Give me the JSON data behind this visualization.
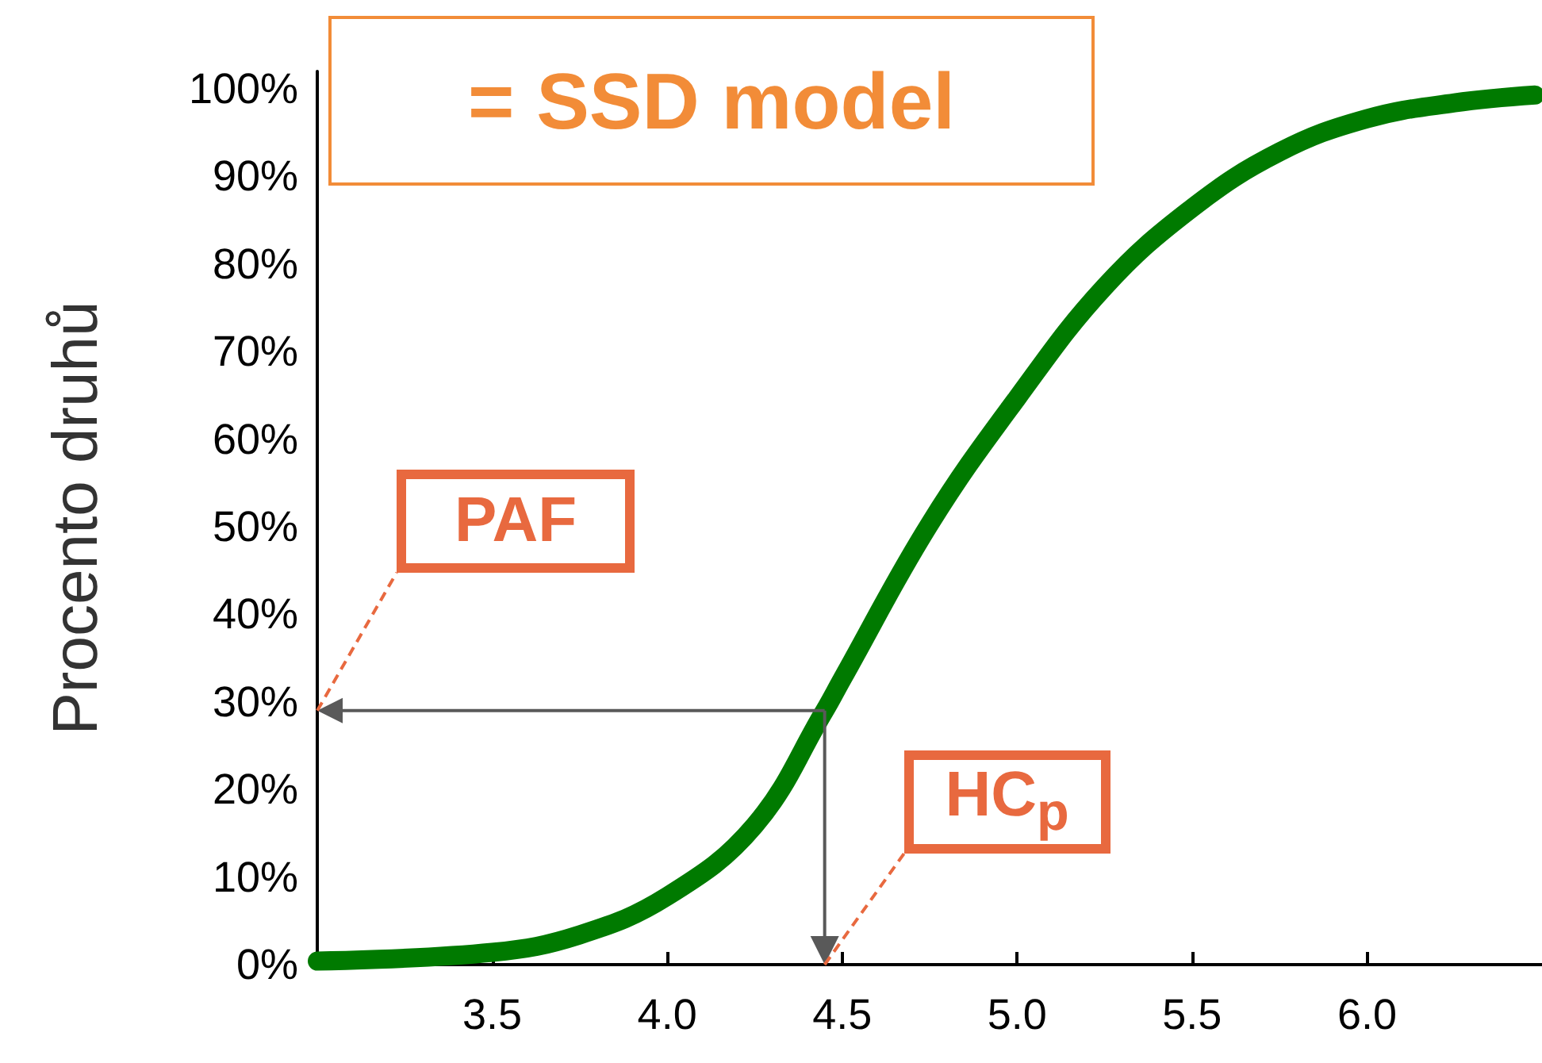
{
  "chart_data": {
    "type": "line",
    "title": "= SSD model",
    "ylabel": "Procento druhů",
    "x": [
      3.0,
      3.5,
      3.75,
      4.0,
      4.25,
      4.45,
      4.5,
      4.75,
      5.0,
      5.25,
      5.5,
      5.75,
      6.0,
      6.25,
      6.48
    ],
    "series": [
      {
        "color": "#007a00",
        "values": [
          0.4,
          1.4,
          3.4,
          7.8,
          15.9,
          29,
          32.6,
          50.3,
          64.7,
          77.4,
          86.4,
          92.8,
          96.6,
          98.4,
          99.3
        ]
      }
    ],
    "xlim": [
      3.0,
      6.5
    ],
    "xticks": [
      {
        "value": 3.5,
        "label": "3.5"
      },
      {
        "value": 4,
        "label": "4.0"
      },
      {
        "value": 4.5,
        "label": "4.5"
      },
      {
        "value": 5,
        "label": "5.0"
      },
      {
        "value": 5.5,
        "label": "5.5"
      },
      {
        "value": 6,
        "label": "6.0"
      }
    ],
    "ylim": [
      0,
      102
    ],
    "yticks": [
      {
        "value": 0,
        "label": "0%"
      },
      {
        "value": 10,
        "label": "10%"
      },
      {
        "value": 20,
        "label": "20%"
      },
      {
        "value": 30,
        "label": "30%"
      },
      {
        "value": 40,
        "label": "40%"
      },
      {
        "value": 50,
        "label": "50%"
      },
      {
        "value": 60,
        "label": "60%"
      },
      {
        "value": 70,
        "label": "70%"
      },
      {
        "value": 80,
        "label": "80%"
      },
      {
        "value": 90,
        "label": "90%"
      },
      {
        "value": 100,
        "label": "100%"
      }
    ],
    "ref_lines": [
      {
        "axis": "y",
        "value": 29,
        "label": "PAF",
        "color": "#595959"
      },
      {
        "axis": "x",
        "value": 4.45,
        "label": "HC$_{p}$",
        "color": "#595959"
      }
    ],
    "grid": false,
    "line_style": "solid"
  }
}
